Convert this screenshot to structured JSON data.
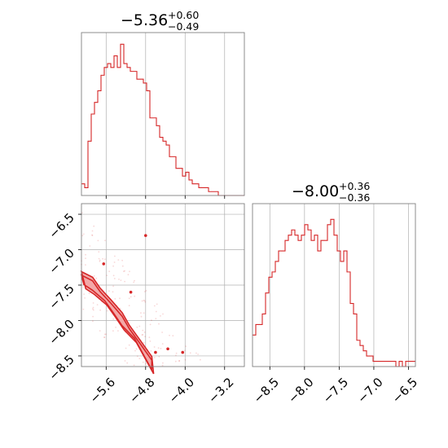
{
  "colors": {
    "main": "#d62728",
    "fill": "#f3a8a8",
    "grid": "#b0b0b0",
    "axes": "#808080"
  },
  "chart_data": [
    {
      "type": "histogram",
      "panel": "top-left",
      "title": {
        "value": "−5.36",
        "plus": "+0.60",
        "minus": "−0.49"
      },
      "xlim": [
        -6.1,
        -2.8
      ],
      "xticks": [
        -5.6,
        -4.8,
        -4.0,
        -3.2
      ],
      "bin_edges_start": -6.1,
      "bin_width": 0.066,
      "counts": [
        3,
        2,
        14,
        21,
        24,
        27,
        31,
        33,
        34,
        33,
        36,
        33,
        39,
        34,
        33,
        32,
        32,
        30,
        30,
        29,
        27,
        20,
        20,
        18,
        15,
        14,
        13,
        10,
        10,
        7,
        7,
        5,
        6,
        4,
        3,
        3,
        2,
        2,
        2,
        1,
        1,
        1,
        0,
        0,
        0,
        0,
        0,
        0,
        0,
        0
      ],
      "ylim": [
        0,
        42
      ]
    },
    {
      "type": "histogram",
      "panel": "bottom-right",
      "title": {
        "value": "−8.00",
        "plus": "+0.36",
        "minus": "−0.36"
      },
      "xlim": [
        -8.75,
        -6.4
      ],
      "xticks": [
        -8.5,
        -8.0,
        -7.5,
        -7.0,
        -6.5
      ],
      "xtick_labels": [
        "−8.5",
        "−8.0",
        "−7.5",
        "−7.0",
        "−6.5"
      ],
      "bin_edges_start": -8.75,
      "bin_width": 0.047,
      "counts": [
        6,
        8,
        8,
        10,
        14,
        17,
        18,
        20,
        22,
        22,
        24,
        25,
        26,
        25,
        24,
        25,
        27,
        26,
        24,
        25,
        22,
        24,
        24,
        27,
        28,
        25,
        22,
        20,
        22,
        18,
        12,
        10,
        5,
        4,
        3,
        2,
        2,
        1,
        1,
        1,
        1,
        1,
        1,
        1,
        0,
        1,
        0,
        1,
        1,
        1
      ],
      "ylim": [
        0,
        31
      ]
    },
    {
      "type": "contour_scatter",
      "panel": "bottom-left",
      "xlim": [
        -6.1,
        -2.8
      ],
      "ylim": [
        -8.65,
        -6.35
      ],
      "xticks": [
        -5.6,
        -4.8,
        -4.0,
        -3.2
      ],
      "xtick_labels": [
        "−5.6",
        "−4.8",
        "−4.0",
        "−3.2"
      ],
      "yticks": [
        -6.5,
        -7.0,
        -7.5,
        -8.0,
        -8.5
      ],
      "ytick_labels": [
        "−6.5",
        "−7.0",
        "−7.5",
        "−8.0",
        "−8.5"
      ],
      "ridge": [
        [
          -6.1,
          -7.42
        ],
        [
          -5.9,
          -7.5
        ],
        [
          -5.7,
          -7.65
        ],
        [
          -5.5,
          -7.82
        ],
        [
          -5.3,
          -8.0
        ],
        [
          -5.1,
          -8.18
        ],
        [
          -4.9,
          -8.4
        ],
        [
          -4.7,
          -8.62
        ]
      ],
      "outer_level_width": 0.22,
      "inner_level_width": 0.12,
      "outliers": [
        [
          -4.6,
          -8.45
        ],
        [
          -4.35,
          -8.4
        ],
        [
          -4.05,
          -8.45
        ],
        [
          -4.8,
          -6.8
        ],
        [
          -5.65,
          -7.2
        ],
        [
          -5.1,
          -7.6
        ]
      ]
    }
  ]
}
